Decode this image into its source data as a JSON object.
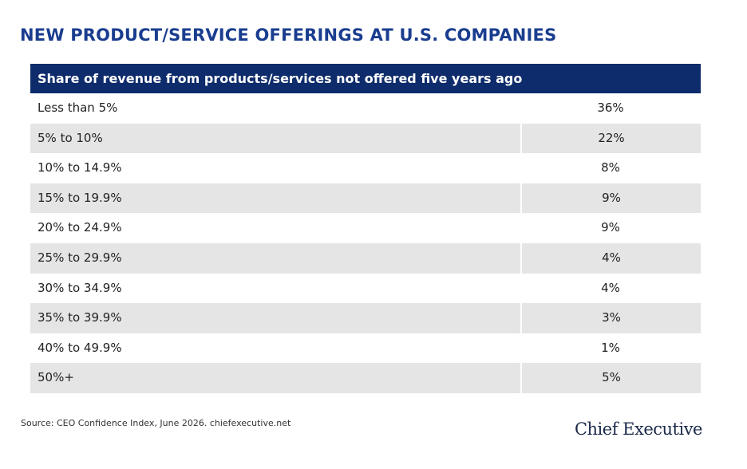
{
  "header": {
    "title": "NEW PRODUCT/SERVICE OFFERINGS AT U.S. COMPANIES"
  },
  "table": {
    "heading": "Share of revenue from products/services not offered five years ago",
    "rows": [
      [
        "Less than 5%",
        "36%"
      ],
      [
        "5% to 10%",
        "22%"
      ],
      [
        "10% to 14.9%",
        "8%"
      ],
      [
        "15% to 19.9%",
        "9%"
      ],
      [
        "20% to 24.9%",
        "9%"
      ],
      [
        "25% to 29.9%",
        "4%"
      ],
      [
        "30% to 34.9%",
        "4%"
      ],
      [
        "35% to 39.9%",
        "3%"
      ],
      [
        "40% to 49.9%",
        "1%"
      ],
      [
        "50%+",
        "5%"
      ]
    ]
  },
  "footer": {
    "source": "Source:  CEO Confidence Index, June 2026. chiefexecutive.net",
    "logo": "Chief Executive"
  }
}
